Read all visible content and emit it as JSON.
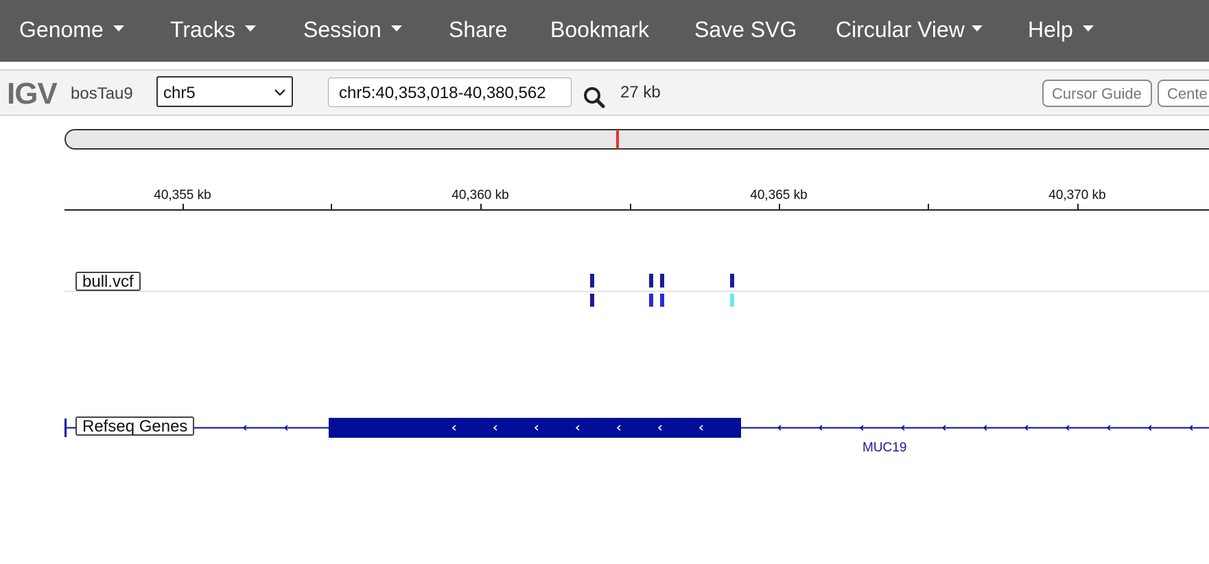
{
  "navbar": {
    "items": [
      {
        "label": "Genome",
        "dropdown": true
      },
      {
        "label": "Tracks",
        "dropdown": true
      },
      {
        "label": "Session",
        "dropdown": true
      },
      {
        "label": "Share",
        "dropdown": false
      },
      {
        "label": "Bookmark",
        "dropdown": false
      },
      {
        "label": "Save SVG",
        "dropdown": false
      },
      {
        "label": "Circular View",
        "dropdown": true
      },
      {
        "label": "Help",
        "dropdown": true
      }
    ]
  },
  "toolbar": {
    "logo": "IGV",
    "genome": "bosTau9",
    "chromosome": "chr5",
    "locus": "chr5:40,353,018-40,380,562",
    "window_size": "27 kb",
    "buttons": [
      "Cursor Guide",
      "Cente"
    ]
  },
  "ruler": {
    "labels": [
      "40,355 kb",
      "40,360 kb",
      "40,365 kb",
      "40,370 kb"
    ]
  },
  "tracks": {
    "vcf": {
      "name": "bull.vcf",
      "variants": [
        {
          "genotype_color": "#1a1a9a"
        },
        {
          "genotype_color": "#2a2ae0"
        },
        {
          "genotype_color": "#2a2ae0"
        },
        {
          "genotype_color": "#6ae8f5"
        }
      ]
    },
    "genes": {
      "name": "Refseq Genes",
      "gene_name": "MUC19",
      "color": "#000e99"
    }
  },
  "colors": {
    "navbar": "#5b5b5b",
    "ideogram_marker": "#e3342f",
    "variant_site": "#1a1a9a"
  }
}
